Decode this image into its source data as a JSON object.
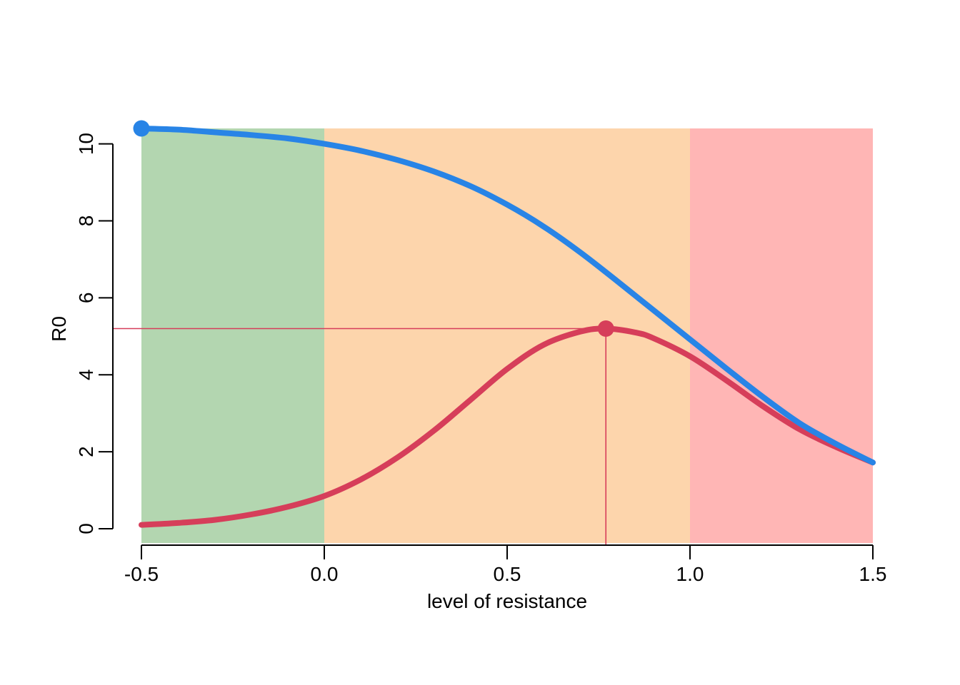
{
  "chart_data": {
    "type": "line",
    "title": "",
    "xlabel": "level of resistance",
    "ylabel": "R0",
    "xlim": [
      -0.5,
      1.5
    ],
    "ylim": [
      0,
      10.4
    ],
    "x_ticks": [
      -0.5,
      0.0,
      0.5,
      1.0,
      1.5
    ],
    "x_tick_labels": [
      "-0.5",
      "0.0",
      "0.5",
      "1.0",
      "1.5"
    ],
    "y_ticks": [
      0,
      2,
      4,
      6,
      8,
      10
    ],
    "y_tick_labels": [
      "0",
      "2",
      "4",
      "6",
      "8",
      "10"
    ],
    "grid": false,
    "regions": [
      {
        "from": -0.5,
        "to": 0.0,
        "color": "#b3d6b0"
      },
      {
        "from": 0.0,
        "to": 1.0,
        "color": "#fdd5ac"
      },
      {
        "from": 1.0,
        "to": 1.5,
        "color": "#ffb6b5"
      }
    ],
    "series": [
      {
        "color": "#2884e6",
        "x": [
          -0.5,
          -0.4,
          -0.3,
          -0.2,
          -0.1,
          0.0,
          0.1,
          0.2,
          0.3,
          0.4,
          0.5,
          0.6,
          0.7,
          0.8,
          0.9,
          1.0,
          1.1,
          1.2,
          1.3,
          1.4,
          1.5
        ],
        "y": [
          10.4,
          10.37,
          10.3,
          10.23,
          10.14,
          10.0,
          9.82,
          9.58,
          9.28,
          8.9,
          8.42,
          7.85,
          7.18,
          6.44,
          5.68,
          4.92,
          4.16,
          3.42,
          2.74,
          2.2,
          1.72
        ]
      },
      {
        "color": "#d63e5a",
        "x": [
          -0.5,
          -0.4,
          -0.3,
          -0.2,
          -0.1,
          0.0,
          0.1,
          0.2,
          0.3,
          0.4,
          0.5,
          0.6,
          0.7,
          0.77,
          0.85,
          0.9,
          1.0,
          1.1,
          1.2,
          1.3,
          1.4,
          1.5
        ],
        "y": [
          0.1,
          0.15,
          0.23,
          0.37,
          0.57,
          0.85,
          1.28,
          1.85,
          2.55,
          3.35,
          4.15,
          4.78,
          5.12,
          5.2,
          5.1,
          4.95,
          4.48,
          3.85,
          3.18,
          2.58,
          2.12,
          1.72
        ]
      }
    ],
    "points": [
      {
        "x": -0.5,
        "y": 10.4,
        "color": "#2884e6"
      },
      {
        "x": 0.77,
        "y": 5.2,
        "color": "#d63e5a"
      }
    ],
    "guide_lines": {
      "x": 0.77,
      "y": 5.2,
      "color": "#d63e5a"
    }
  }
}
